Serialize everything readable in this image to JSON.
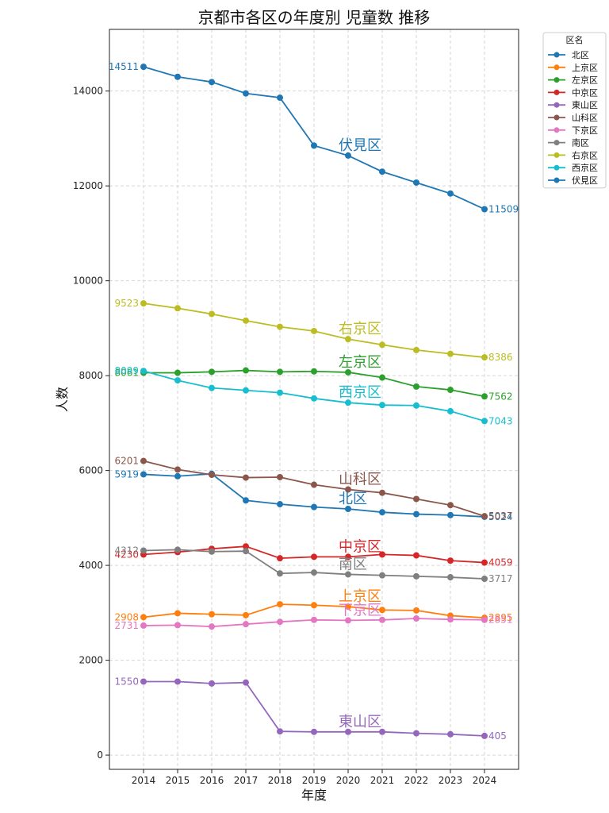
{
  "chart_data": {
    "type": "line",
    "title": "京都市各区の年度別 児童数 推移",
    "xlabel": "年度",
    "ylabel": "人数",
    "x": [
      2014,
      2015,
      2016,
      2017,
      2018,
      2019,
      2020,
      2021,
      2022,
      2023,
      2024
    ],
    "xlim": [
      2013.0,
      2025.0
    ],
    "ylim": [
      -300,
      15300
    ],
    "yticks": [
      0,
      2000,
      4000,
      6000,
      8000,
      10000,
      12000,
      14000
    ],
    "grid": true,
    "legend_title": "区名",
    "legend_position": "outside-top-right",
    "series": [
      {
        "name": "北区",
        "color": "#1f77b4",
        "start_label": "5919",
        "end_label": "5024",
        "mid_label": "北区",
        "values": [
          5919,
          5880,
          5930,
          5370,
          5290,
          5230,
          5190,
          5120,
          5080,
          5060,
          5024
        ]
      },
      {
        "name": "上京区",
        "color": "#ff7f0e",
        "start_label": "2908",
        "end_label": "2895",
        "mid_label": "上京区",
        "values": [
          2908,
          2990,
          2970,
          2950,
          3180,
          3160,
          3130,
          3060,
          3050,
          2940,
          2895
        ]
      },
      {
        "name": "左京区",
        "color": "#2ca02c",
        "start_label": "8061",
        "end_label": "7562",
        "mid_label": "左京区",
        "values": [
          8061,
          8060,
          8080,
          8110,
          8080,
          8090,
          8070,
          7960,
          7770,
          7700,
          7562
        ]
      },
      {
        "name": "中京区",
        "color": "#d62728",
        "start_label": "4230",
        "end_label": "4059",
        "mid_label": "中京区",
        "values": [
          4230,
          4280,
          4350,
          4400,
          4150,
          4180,
          4180,
          4230,
          4210,
          4100,
          4059
        ]
      },
      {
        "name": "東山区",
        "color": "#9467bd",
        "start_label": "1550",
        "end_label": "405",
        "mid_label": "東山区",
        "values": [
          1550,
          1550,
          1510,
          1530,
          500,
          490,
          490,
          490,
          460,
          440,
          405
        ]
      },
      {
        "name": "山科区",
        "color": "#8c564b",
        "start_label": "6201",
        "end_label": "5037",
        "mid_label": "山科区",
        "values": [
          6201,
          6020,
          5910,
          5850,
          5860,
          5700,
          5600,
          5530,
          5400,
          5270,
          5037
        ]
      },
      {
        "name": "下京区",
        "color": "#e377c2",
        "start_label": "2731",
        "end_label": "2851",
        "mid_label": "下京区",
        "values": [
          2731,
          2740,
          2710,
          2760,
          2810,
          2850,
          2840,
          2850,
          2880,
          2860,
          2851
        ]
      },
      {
        "name": "南区",
        "color": "#7f7f7f",
        "start_label": "4312",
        "end_label": "3717",
        "mid_label": "南区",
        "values": [
          4312,
          4330,
          4290,
          4300,
          3830,
          3850,
          3810,
          3790,
          3770,
          3750,
          3717
        ]
      },
      {
        "name": "右京区",
        "color": "#bcbd22",
        "start_label": "9523",
        "end_label": "8386",
        "mid_label": "右京区",
        "values": [
          9523,
          9420,
          9300,
          9160,
          9030,
          8940,
          8770,
          8650,
          8540,
          8460,
          8386
        ]
      },
      {
        "name": "西京区",
        "color": "#17becf",
        "start_label": "8099",
        "end_label": "7043",
        "mid_label": "西京区",
        "values": [
          8099,
          7900,
          7740,
          7690,
          7640,
          7520,
          7430,
          7380,
          7370,
          7250,
          7043
        ]
      },
      {
        "name": "伏見区",
        "color": "#1f77b4",
        "start_label": "14511",
        "end_label": "11509",
        "mid_label": "伏見区",
        "values": [
          14511,
          14300,
          14190,
          13950,
          13860,
          12850,
          12640,
          12300,
          12070,
          11840,
          11509
        ]
      }
    ]
  }
}
